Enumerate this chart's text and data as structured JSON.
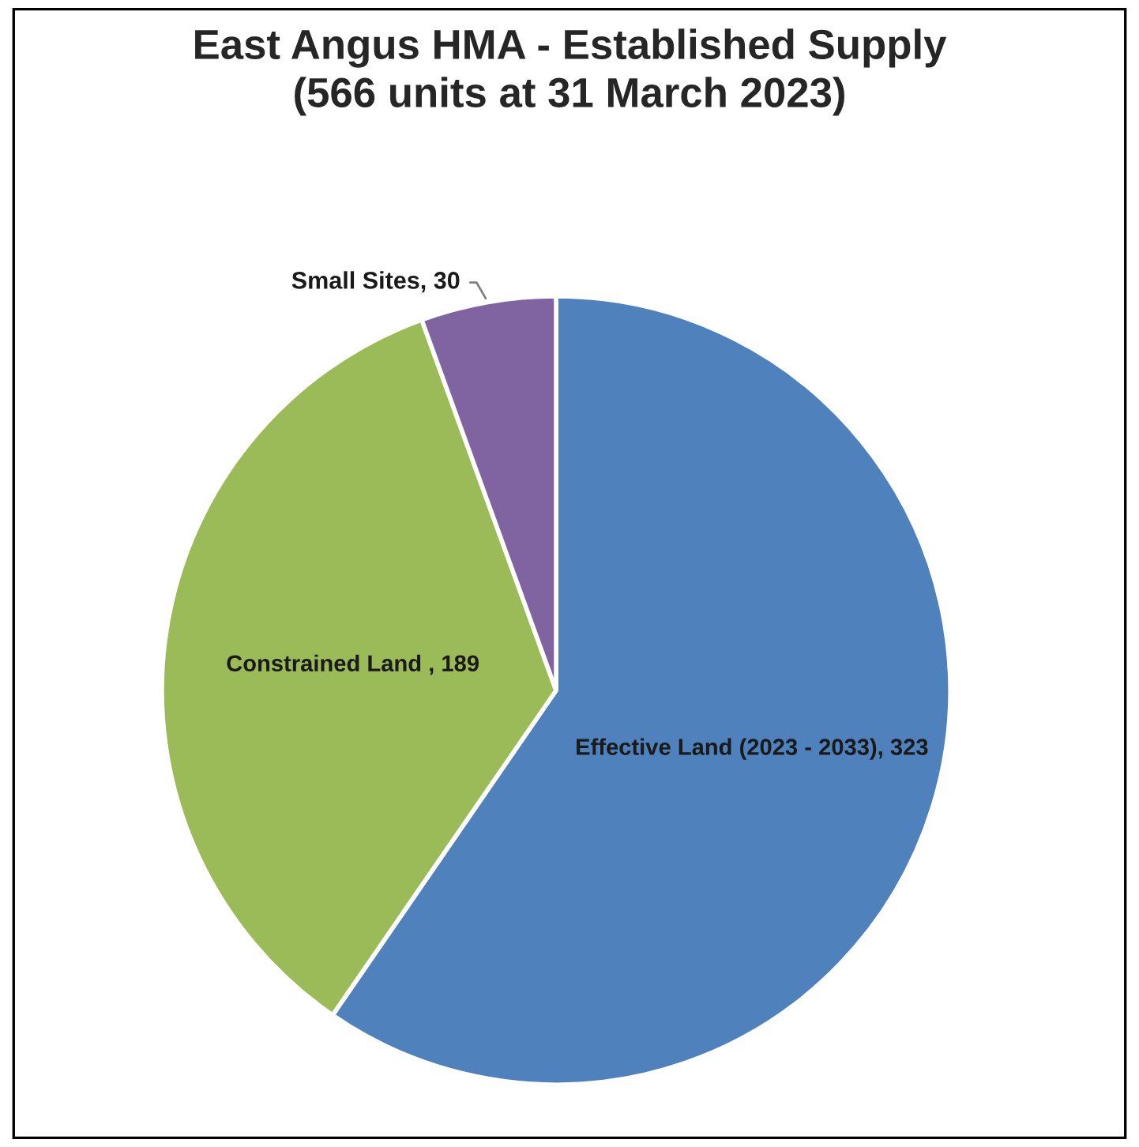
{
  "chart_data": {
    "type": "pie",
    "title": "East Angus HMA - Established Supply\n(566 units at 31 March 2023)",
    "categories": [
      "Effective Land (2023 - 2033)",
      "Constrained Land ",
      "Small Sites"
    ],
    "values": [
      323,
      189,
      30
    ],
    "value_labels": [
      ", 323",
      ", 189",
      ", 30"
    ],
    "colors": [
      "#4f81bd",
      "#9bbb59",
      "#8064a2"
    ],
    "legend": false
  }
}
